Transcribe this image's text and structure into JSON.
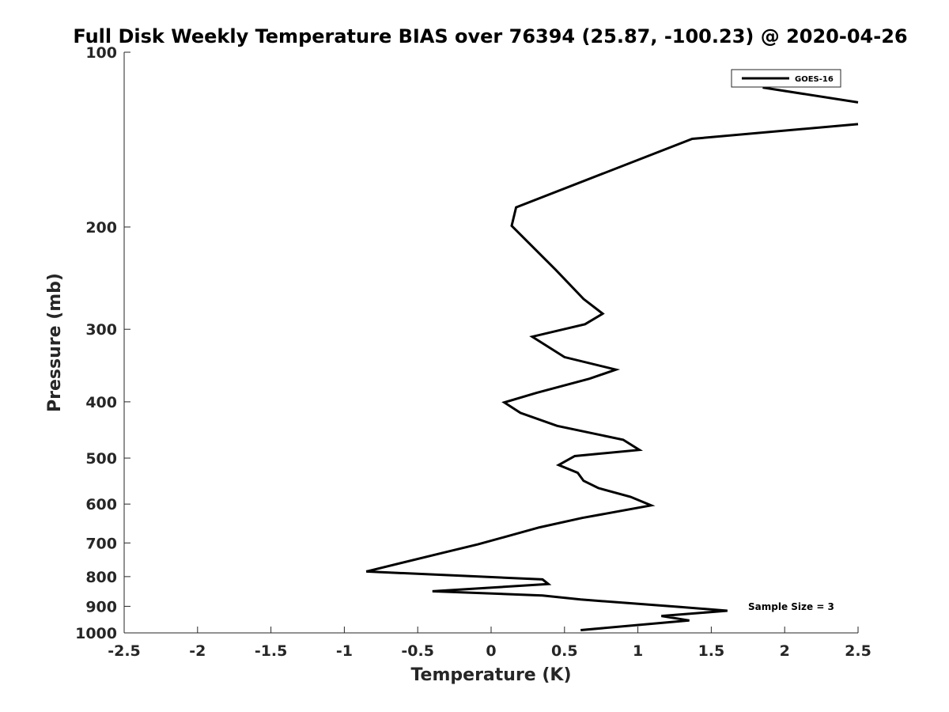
{
  "chart_data": {
    "type": "line",
    "title": "Full Disk Weekly Temperature BIAS over 76394 (25.87, -100.23) @ 2020-04-26",
    "xlabel": "Temperature (K)",
    "ylabel": "Pressure (mb)",
    "xlim": [
      -2.5,
      2.5
    ],
    "ylim": [
      100,
      1000
    ],
    "y_scale": "log",
    "y_reversed": true,
    "x_ticks": [
      "-2.5",
      "-2",
      "-1.5",
      "-1",
      "-0.5",
      "0",
      "0.5",
      "1",
      "1.5",
      "2",
      "2.5"
    ],
    "y_ticks": [
      "100",
      "200",
      "300",
      "400",
      "500",
      "600",
      "700",
      "800",
      "900",
      "1000"
    ],
    "grid": false,
    "legend_position": "top-right",
    "annotation": "Sample Size = 3",
    "series": [
      {
        "name": "GOES-16",
        "color": "#000000",
        "segments": [
          [
            [
              1.85,
              115
            ],
            [
              2.5,
              122
            ]
          ],
          [
            [
              2.5,
              133
            ],
            [
              1.37,
              141
            ],
            [
              0.17,
              185
            ],
            [
              0.14,
              199
            ],
            [
              0.44,
              237
            ],
            [
              0.63,
              266
            ],
            [
              0.76,
              282
            ],
            [
              0.64,
              294
            ],
            [
              0.28,
              309
            ],
            [
              0.5,
              335
            ],
            [
              0.85,
              352
            ],
            [
              0.67,
              365
            ],
            [
              0.31,
              386
            ],
            [
              0.09,
              401
            ],
            [
              0.2,
              418
            ],
            [
              0.45,
              440
            ],
            [
              0.9,
              465
            ],
            [
              1.01,
              484
            ],
            [
              0.57,
              496
            ],
            [
              0.46,
              514
            ],
            [
              0.59,
              530
            ],
            [
              0.63,
              547
            ],
            [
              0.73,
              563
            ],
            [
              0.95,
              583
            ],
            [
              1.09,
              603
            ],
            [
              0.62,
              634
            ],
            [
              0.33,
              658
            ],
            [
              0.08,
              685
            ],
            [
              -0.09,
              704
            ],
            [
              -0.33,
              728
            ],
            [
              -0.85,
              784
            ],
            [
              0.35,
              809
            ],
            [
              0.39,
              824
            ],
            [
              -0.4,
              848
            ],
            [
              0.35,
              862
            ],
            [
              0.61,
              876
            ],
            [
              1.28,
              902
            ],
            [
              1.61,
              916
            ],
            [
              1.16,
              935
            ],
            [
              1.35,
              952
            ],
            [
              0.61,
              989
            ]
          ]
        ]
      }
    ]
  }
}
